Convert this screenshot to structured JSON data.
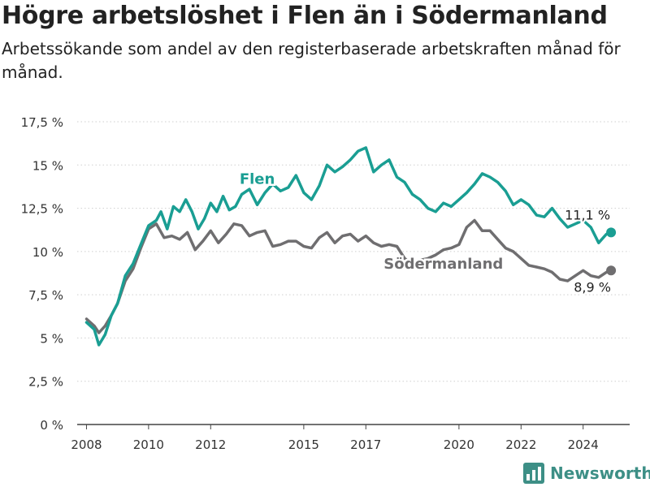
{
  "header": {
    "title": "Högre arbetslöshet i Flen än i Södermanland",
    "subtitle": "Arbetssökande som andel av den registerbaserade arbetskraften månad för månad."
  },
  "brand": {
    "name": "Newsworthy",
    "icon": "newsworthy-bar-chart-icon",
    "color": "#3d8f86"
  },
  "chart_data": {
    "type": "line",
    "title": "Högre arbetslöshet i Flen än i Södermanland",
    "subtitle": "Arbetssökande som andel av den registerbaserade arbetskraften månad för månad.",
    "xlabel": "",
    "ylabel": "",
    "xlim": [
      2007.7,
      2025.5
    ],
    "ylim": [
      0,
      17.5
    ],
    "x_ticks": [
      2008,
      2010,
      2012,
      2015,
      2017,
      2020,
      2022,
      2024
    ],
    "x_tick_labels": [
      "2008",
      "2010",
      "2012",
      "2015",
      "2017",
      "2020",
      "2022",
      "2024"
    ],
    "y_ticks": [
      0,
      2.5,
      5,
      7.5,
      10,
      12.5,
      15,
      17.5
    ],
    "y_tick_labels": [
      "0 %",
      "2,5 %",
      "5 %",
      "7,5 %",
      "10 %",
      "12,5 %",
      "15 %",
      "17,5 %"
    ],
    "grid": "horizontal",
    "series": [
      {
        "name": "Flen",
        "color": "#1a9e93",
        "end_label": "11,1 %",
        "points": [
          [
            2008.0,
            5.9
          ],
          [
            2008.25,
            5.5
          ],
          [
            2008.4,
            4.6
          ],
          [
            2008.6,
            5.2
          ],
          [
            2008.8,
            6.3
          ],
          [
            2009.0,
            7.0
          ],
          [
            2009.25,
            8.6
          ],
          [
            2009.5,
            9.3
          ],
          [
            2009.75,
            10.4
          ],
          [
            2010.0,
            11.5
          ],
          [
            2010.25,
            11.8
          ],
          [
            2010.4,
            12.3
          ],
          [
            2010.6,
            11.3
          ],
          [
            2010.8,
            12.6
          ],
          [
            2011.0,
            12.3
          ],
          [
            2011.2,
            13.0
          ],
          [
            2011.4,
            12.3
          ],
          [
            2011.6,
            11.3
          ],
          [
            2011.8,
            11.9
          ],
          [
            2012.0,
            12.8
          ],
          [
            2012.2,
            12.3
          ],
          [
            2012.4,
            13.2
          ],
          [
            2012.6,
            12.4
          ],
          [
            2012.8,
            12.6
          ],
          [
            2013.0,
            13.3
          ],
          [
            2013.25,
            13.6
          ],
          [
            2013.5,
            12.7
          ],
          [
            2013.75,
            13.4
          ],
          [
            2014.0,
            13.9
          ],
          [
            2014.25,
            13.5
          ],
          [
            2014.5,
            13.7
          ],
          [
            2014.75,
            14.4
          ],
          [
            2015.0,
            13.4
          ],
          [
            2015.25,
            13.0
          ],
          [
            2015.5,
            13.8
          ],
          [
            2015.75,
            15.0
          ],
          [
            2016.0,
            14.6
          ],
          [
            2016.25,
            14.9
          ],
          [
            2016.5,
            15.3
          ],
          [
            2016.75,
            15.8
          ],
          [
            2017.0,
            16.0
          ],
          [
            2017.25,
            14.6
          ],
          [
            2017.5,
            15.0
          ],
          [
            2017.75,
            15.3
          ],
          [
            2018.0,
            14.3
          ],
          [
            2018.25,
            14.0
          ],
          [
            2018.5,
            13.3
          ],
          [
            2018.75,
            13.0
          ],
          [
            2019.0,
            12.5
          ],
          [
            2019.25,
            12.3
          ],
          [
            2019.5,
            12.8
          ],
          [
            2019.75,
            12.6
          ],
          [
            2020.0,
            13.0
          ],
          [
            2020.25,
            13.4
          ],
          [
            2020.5,
            13.9
          ],
          [
            2020.75,
            14.5
          ],
          [
            2021.0,
            14.3
          ],
          [
            2021.25,
            14.0
          ],
          [
            2021.5,
            13.5
          ],
          [
            2021.75,
            12.7
          ],
          [
            2022.0,
            13.0
          ],
          [
            2022.25,
            12.7
          ],
          [
            2022.5,
            12.1
          ],
          [
            2022.75,
            12.0
          ],
          [
            2023.0,
            12.5
          ],
          [
            2023.25,
            11.9
          ],
          [
            2023.5,
            11.4
          ],
          [
            2023.75,
            11.6
          ],
          [
            2024.0,
            11.8
          ],
          [
            2024.25,
            11.4
          ],
          [
            2024.5,
            10.5
          ],
          [
            2024.75,
            11.0
          ],
          [
            2024.9,
            11.1
          ]
        ]
      },
      {
        "name": "Södermanland",
        "color": "#6f6e70",
        "end_label": "8,9 %",
        "points": [
          [
            2008.0,
            6.1
          ],
          [
            2008.25,
            5.7
          ],
          [
            2008.4,
            5.3
          ],
          [
            2008.6,
            5.7
          ],
          [
            2008.8,
            6.3
          ],
          [
            2009.0,
            7.0
          ],
          [
            2009.25,
            8.3
          ],
          [
            2009.5,
            9.0
          ],
          [
            2009.75,
            10.2
          ],
          [
            2010.0,
            11.3
          ],
          [
            2010.25,
            11.6
          ],
          [
            2010.5,
            10.8
          ],
          [
            2010.75,
            10.9
          ],
          [
            2011.0,
            10.7
          ],
          [
            2011.25,
            11.1
          ],
          [
            2011.5,
            10.1
          ],
          [
            2011.75,
            10.6
          ],
          [
            2012.0,
            11.2
          ],
          [
            2012.25,
            10.5
          ],
          [
            2012.5,
            11.0
          ],
          [
            2012.75,
            11.6
          ],
          [
            2013.0,
            11.5
          ],
          [
            2013.25,
            10.9
          ],
          [
            2013.5,
            11.1
          ],
          [
            2013.75,
            11.2
          ],
          [
            2014.0,
            10.3
          ],
          [
            2014.25,
            10.4
          ],
          [
            2014.5,
            10.6
          ],
          [
            2014.75,
            10.6
          ],
          [
            2015.0,
            10.3
          ],
          [
            2015.25,
            10.2
          ],
          [
            2015.5,
            10.8
          ],
          [
            2015.75,
            11.1
          ],
          [
            2016.0,
            10.5
          ],
          [
            2016.25,
            10.9
          ],
          [
            2016.5,
            11.0
          ],
          [
            2016.75,
            10.6
          ],
          [
            2017.0,
            10.9
          ],
          [
            2017.25,
            10.5
          ],
          [
            2017.5,
            10.3
          ],
          [
            2017.75,
            10.4
          ],
          [
            2018.0,
            10.3
          ],
          [
            2018.25,
            9.6
          ],
          [
            2018.5,
            9.3
          ],
          [
            2018.75,
            9.5
          ],
          [
            2019.0,
            9.6
          ],
          [
            2019.25,
            9.8
          ],
          [
            2019.5,
            10.1
          ],
          [
            2019.75,
            10.2
          ],
          [
            2020.0,
            10.4
          ],
          [
            2020.25,
            11.4
          ],
          [
            2020.5,
            11.8
          ],
          [
            2020.75,
            11.2
          ],
          [
            2021.0,
            11.2
          ],
          [
            2021.25,
            10.7
          ],
          [
            2021.5,
            10.2
          ],
          [
            2021.75,
            10.0
          ],
          [
            2022.0,
            9.6
          ],
          [
            2022.25,
            9.2
          ],
          [
            2022.5,
            9.1
          ],
          [
            2022.75,
            9.0
          ],
          [
            2023.0,
            8.8
          ],
          [
            2023.25,
            8.4
          ],
          [
            2023.5,
            8.3
          ],
          [
            2023.75,
            8.6
          ],
          [
            2024.0,
            8.9
          ],
          [
            2024.25,
            8.6
          ],
          [
            2024.5,
            8.5
          ],
          [
            2024.75,
            8.8
          ],
          [
            2024.9,
            8.9
          ]
        ]
      }
    ]
  }
}
